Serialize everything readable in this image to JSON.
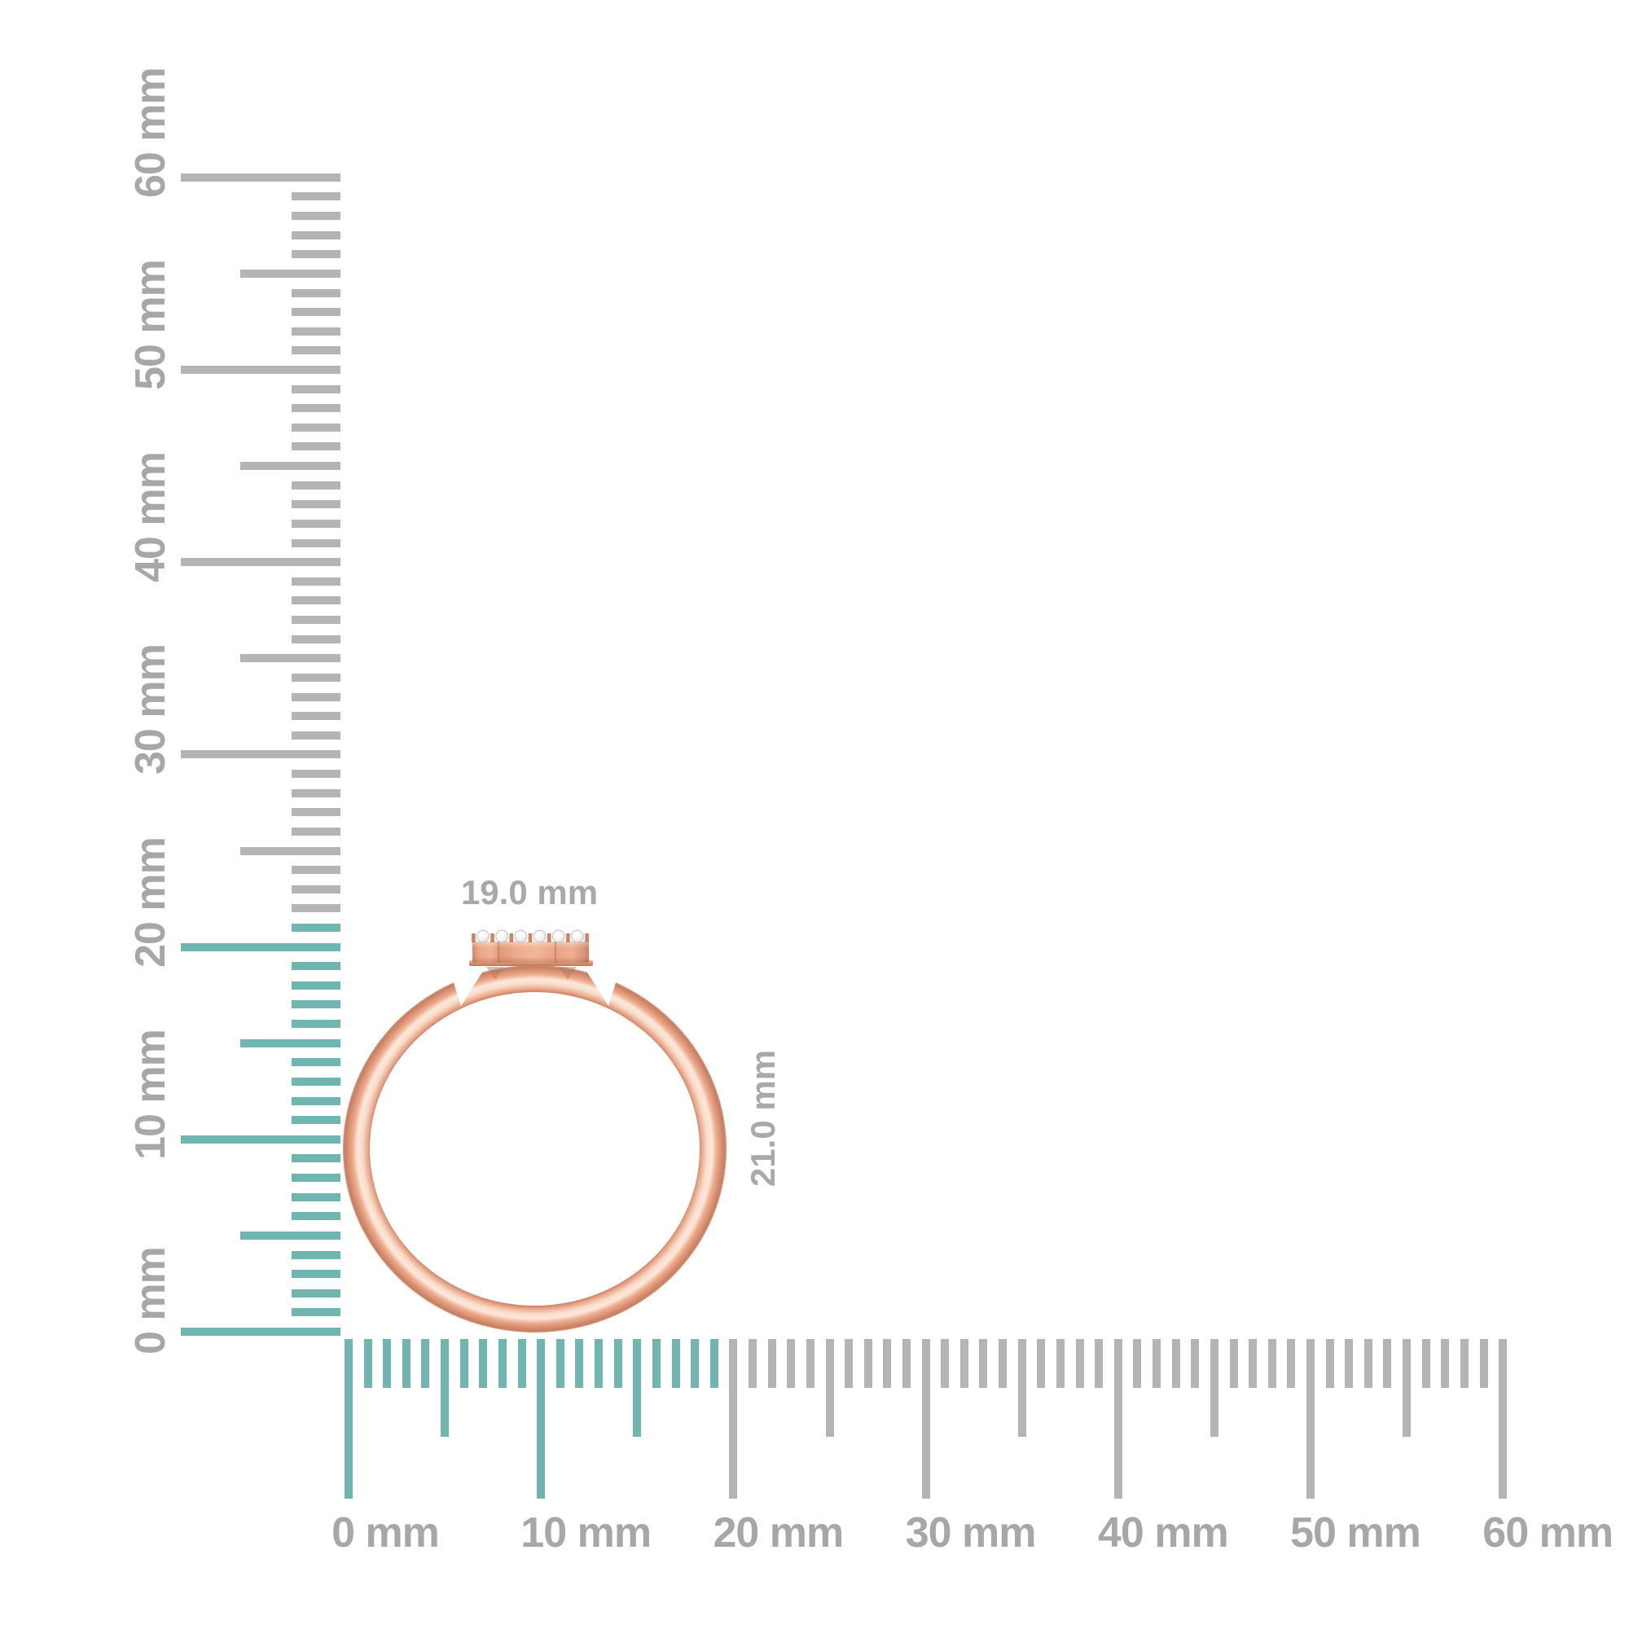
{
  "scene": {
    "description": "Rose gold diamond-accent stacking ring shown edge-on against a white background with millimeter measurement rulers",
    "background_color": "#ffffff"
  },
  "dimensions": {
    "width_label": "19.0 mm",
    "height_label": "21.0 mm",
    "width_mm": 19.0,
    "height_mm": 21.0
  },
  "rulers": {
    "unit": "mm",
    "range_mm": [
      0,
      60
    ],
    "minor_step_mm": 1,
    "medium_step_mm": 5,
    "major_step_mm": 10,
    "vertical": {
      "labels": [
        "0 mm",
        "10 mm",
        "20 mm",
        "30 mm",
        "40 mm",
        "50 mm",
        "60 mm"
      ],
      "highlight_extent_mm": 21
    },
    "horizontal": {
      "labels": [
        "0 mm",
        "10 mm",
        "20 mm",
        "30 mm",
        "40 mm",
        "50 mm",
        "60 mm"
      ],
      "highlight_extent_mm": 19
    },
    "colors": {
      "highlight": "#71b5b0",
      "tick": "#b4b4b4",
      "label": "#a7a7a7"
    }
  },
  "ring": {
    "diamond_count": 6,
    "colors": {
      "band": "#e8a385",
      "band_highlight": "#fbe2d1",
      "band_dark": "#c98266",
      "bezel_light": "#f0ac8d",
      "bezel_edge": "#d89173",
      "flange_dark": "#c77c5e",
      "prong_gold": "#cc8466",
      "diamond": "#ffffff",
      "diamond_edge": "#c6c6c6",
      "dimension_label_color": "#a9a9a9"
    }
  }
}
